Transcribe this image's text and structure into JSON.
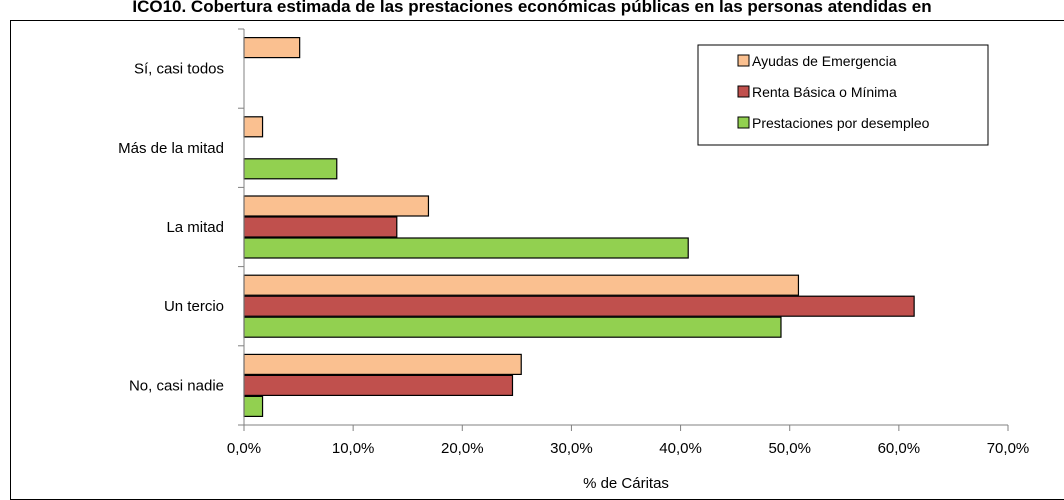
{
  "chart_data": {
    "type": "bar",
    "orientation": "horizontal",
    "title": "ICO10. Cobertura estimada de las prestaciones económicas públicas en las personas atendidas en",
    "categories": [
      "Sí, casi todos",
      "Más de la mitad",
      "La mitad",
      "Un tercio",
      "No, casi nadie"
    ],
    "series": [
      {
        "name": "Ayudas de Emergencia",
        "color": "#fac090",
        "values": [
          5.1,
          1.7,
          16.9,
          50.8,
          25.4
        ]
      },
      {
        "name": "Renta Básica o Mínima",
        "color": "#c0504d",
        "values": [
          0,
          0,
          14.0,
          61.4,
          24.6
        ]
      },
      {
        "name": "Prestaciones por desempleo",
        "color": "#92d050",
        "values": [
          0,
          8.5,
          40.7,
          49.2,
          1.7
        ]
      }
    ],
    "xlabel": "% de Cáritas",
    "ylabel": "",
    "xlim": [
      0,
      70
    ],
    "xticks": [
      "0,0%",
      "10,0%",
      "20,0%",
      "30,0%",
      "40,0%",
      "50,0%",
      "60,0%",
      "70,0%"
    ],
    "legend_position": "top-right",
    "grid": false
  }
}
